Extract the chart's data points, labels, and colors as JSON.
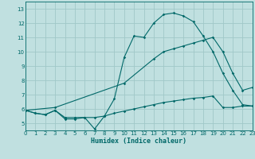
{
  "xlabel": "Humidex (Indice chaleur)",
  "bg_color": "#c0e0e0",
  "grid_color": "#a0c8c8",
  "line_color": "#006868",
  "xlim": [
    0,
    23
  ],
  "ylim": [
    4.5,
    13.5
  ],
  "xticks": [
    0,
    1,
    2,
    3,
    4,
    5,
    6,
    7,
    8,
    9,
    10,
    11,
    12,
    13,
    14,
    15,
    16,
    17,
    18,
    19,
    20,
    21,
    22,
    23
  ],
  "yticks": [
    5,
    6,
    7,
    8,
    9,
    10,
    11,
    12,
    13
  ],
  "line1_x": [
    0,
    1,
    2,
    3,
    4,
    5,
    6,
    7,
    8,
    9,
    10,
    11,
    12,
    13,
    14,
    15,
    16,
    17,
    18,
    19,
    20,
    21,
    22,
    23
  ],
  "line1_y": [
    5.9,
    5.7,
    5.6,
    5.9,
    5.3,
    5.3,
    5.4,
    4.6,
    5.5,
    6.7,
    9.6,
    11.1,
    11.0,
    12.0,
    12.6,
    12.7,
    12.5,
    12.1,
    11.1,
    10.0,
    8.5,
    7.3,
    6.3,
    6.2
  ],
  "line2_x": [
    0,
    1,
    2,
    3,
    4,
    5,
    6,
    7,
    8,
    9,
    10,
    11,
    12,
    13,
    14,
    15,
    16,
    17,
    18,
    19,
    20,
    21,
    22,
    23
  ],
  "line2_y": [
    5.9,
    5.7,
    5.6,
    5.9,
    5.4,
    5.4,
    5.4,
    5.4,
    5.5,
    5.7,
    5.85,
    6.0,
    6.15,
    6.3,
    6.45,
    6.55,
    6.65,
    6.75,
    6.8,
    6.9,
    6.1,
    6.1,
    6.2,
    6.2
  ],
  "line3_x": [
    0,
    3,
    10,
    13,
    14,
    15,
    16,
    17,
    18,
    19,
    20,
    21,
    22,
    23
  ],
  "line3_y": [
    5.9,
    6.1,
    7.8,
    9.5,
    10.0,
    10.2,
    10.4,
    10.6,
    10.8,
    11.0,
    10.0,
    8.5,
    7.3,
    7.5
  ]
}
